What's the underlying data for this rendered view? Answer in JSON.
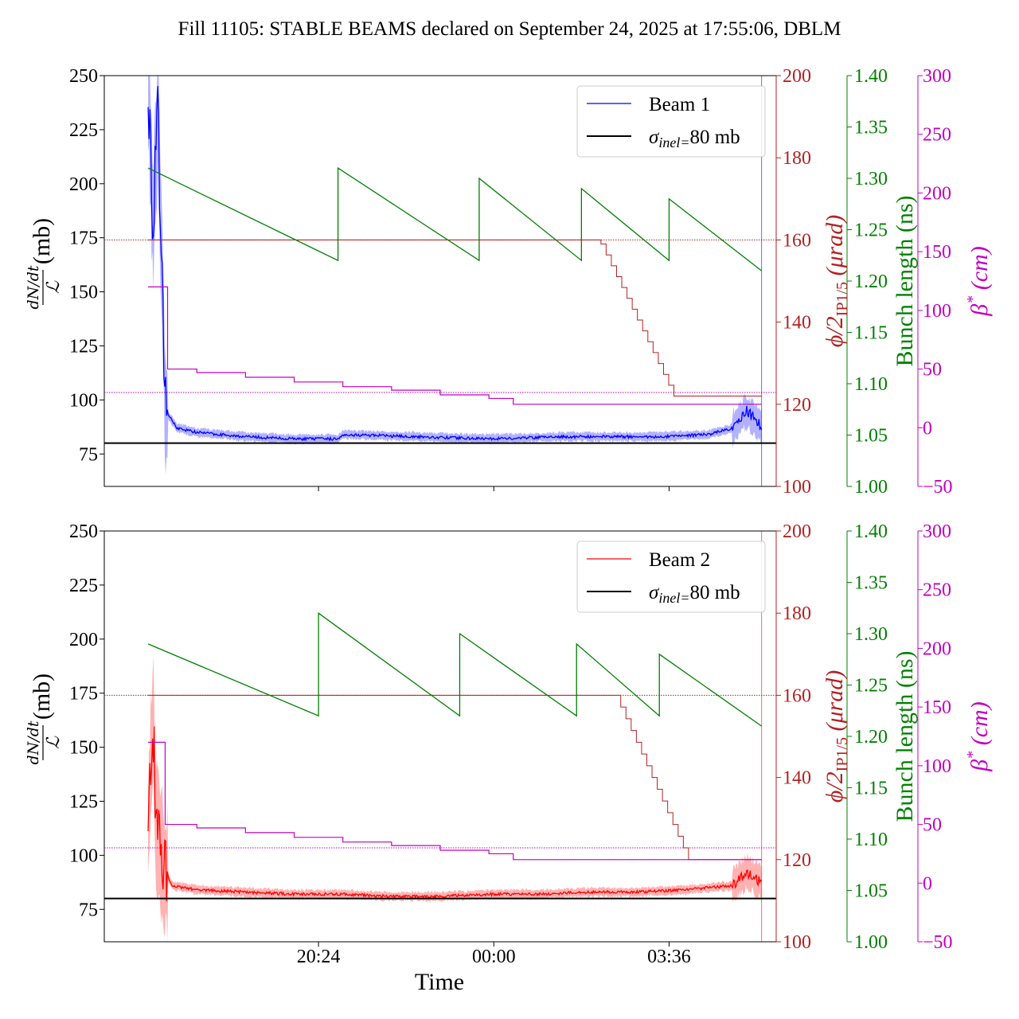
{
  "title": "Fill 11105: STABLE BEAMS declared on September 24, 2025 at 17:55:06, DBLM",
  "xlabel": "Time",
  "xticks": [
    "20:24",
    "00:00",
    "03:36"
  ],
  "colors": {
    "beam1": "#0000ff",
    "beam2": "#ff0000",
    "crossing": "#b22222",
    "bunch": "#008000",
    "betastar": "#c000c0",
    "reference": "#000000"
  },
  "axes": {
    "left": {
      "label_top": "dN/dt",
      "label_bottom": "ℒ",
      "unit": "(mb)",
      "ylim": [
        60,
        250
      ],
      "ticks": [
        75,
        100,
        125,
        150,
        175,
        200,
        225,
        250
      ]
    },
    "crossing": {
      "label": "ϕ/2",
      "label_sub": "IP1/5",
      "unit": "(μrad)",
      "ylim": [
        100,
        200
      ],
      "ticks": [
        100,
        120,
        140,
        160,
        180,
        200
      ]
    },
    "bunch": {
      "label": "Bunch length (ns)",
      "ylim": [
        1.0,
        1.4
      ],
      "ticks": [
        "1.00",
        "1.05",
        "1.10",
        "1.15",
        "1.20",
        "1.25",
        "1.30",
        "1.35",
        "1.40"
      ]
    },
    "betastar": {
      "label": "β",
      "label_sup": "*",
      "unit": "(cm)",
      "ylim": [
        -50,
        300
      ],
      "ticks": [
        "−50",
        "0",
        "50",
        "100",
        "150",
        "200",
        "250",
        "300"
      ]
    }
  },
  "chart_data": [
    {
      "panel": "top",
      "type": "line",
      "legend": [
        "Beam 1",
        "σinel=80 mb"
      ],
      "legend_position": "top-right",
      "x_unit": "hours after 17:55",
      "x_range": [
        -0.9,
        12.9
      ],
      "reference_cross_section_mb": 80,
      "crossing_reference_urad": 160,
      "betastar_reference_cm": 30,
      "beam_cross_section_mb": [
        [
          0,
          250
        ],
        [
          0.1,
          180
        ],
        [
          0.2,
          230
        ],
        [
          0.3,
          150
        ],
        [
          0.35,
          95
        ],
        [
          0.6,
          87
        ],
        [
          1.0,
          85
        ],
        [
          2.0,
          83
        ],
        [
          3.0,
          82
        ],
        [
          3.9,
          82
        ],
        [
          4.0,
          84
        ],
        [
          5.5,
          83
        ],
        [
          7.0,
          82
        ],
        [
          8.5,
          83
        ],
        [
          10.5,
          83
        ],
        [
          11.5,
          84
        ],
        [
          12.0,
          87
        ],
        [
          12.3,
          95
        ],
        [
          12.6,
          88
        ]
      ],
      "bunch_length_ns": [
        [
          0,
          1.31
        ],
        [
          3.9,
          1.22
        ],
        [
          3.9,
          1.31
        ],
        [
          6.8,
          1.22
        ],
        [
          6.8,
          1.3
        ],
        [
          8.9,
          1.22
        ],
        [
          8.9,
          1.29
        ],
        [
          10.7,
          1.22
        ],
        [
          10.7,
          1.28
        ],
        [
          12.6,
          1.21
        ]
      ],
      "crossing_angle_urad": [
        [
          0,
          160
        ],
        [
          9.3,
          160
        ],
        [
          9.3,
          159
        ],
        [
          10.8,
          122
        ],
        [
          12.6,
          122
        ]
      ],
      "betastar_cm": [
        [
          0,
          120
        ],
        [
          0.3,
          120
        ],
        [
          0.4,
          120
        ],
        [
          0.4,
          50
        ],
        [
          1.0,
          47
        ],
        [
          2.0,
          43
        ],
        [
          3.0,
          39
        ],
        [
          4.0,
          35
        ],
        [
          5.0,
          32
        ],
        [
          6.0,
          28
        ],
        [
          7.0,
          25
        ],
        [
          7.5,
          20
        ],
        [
          12.6,
          20
        ]
      ]
    },
    {
      "panel": "bottom",
      "type": "line",
      "legend": [
        "Beam 2",
        "σinel=80 mb"
      ],
      "legend_position": "top-right",
      "x_unit": "hours after 17:55",
      "x_range": [
        -0.9,
        12.9
      ],
      "reference_cross_section_mb": 80,
      "crossing_reference_urad": 160,
      "betastar_reference_cm": 30,
      "beam_cross_section_mb": [
        [
          0,
          110
        ],
        [
          0.1,
          165
        ],
        [
          0.15,
          120
        ],
        [
          0.3,
          95
        ],
        [
          0.5,
          86
        ],
        [
          1.0,
          84
        ],
        [
          2.0,
          83
        ],
        [
          3.0,
          82
        ],
        [
          4.0,
          82
        ],
        [
          5.0,
          81
        ],
        [
          6.0,
          81
        ],
        [
          7.0,
          82
        ],
        [
          8.0,
          82
        ],
        [
          9.0,
          83
        ],
        [
          10.0,
          83
        ],
        [
          11.0,
          84
        ],
        [
          12.0,
          86
        ],
        [
          12.3,
          92
        ],
        [
          12.6,
          87
        ]
      ],
      "bunch_length_ns": [
        [
          0,
          1.29
        ],
        [
          3.5,
          1.22
        ],
        [
          3.5,
          1.32
        ],
        [
          6.4,
          1.22
        ],
        [
          6.4,
          1.3
        ],
        [
          8.8,
          1.22
        ],
        [
          8.8,
          1.29
        ],
        [
          10.5,
          1.22
        ],
        [
          10.5,
          1.28
        ],
        [
          12.6,
          1.21
        ]
      ],
      "crossing_angle_urad": [
        [
          0,
          160
        ],
        [
          9.6,
          160
        ],
        [
          11.1,
          120
        ],
        [
          12.6,
          120
        ]
      ],
      "betastar_cm": [
        [
          0,
          120
        ],
        [
          0.3,
          120
        ],
        [
          0.35,
          50
        ],
        [
          1.0,
          47
        ],
        [
          2.0,
          43
        ],
        [
          3.0,
          39
        ],
        [
          4.0,
          35
        ],
        [
          5.0,
          32
        ],
        [
          6.0,
          28
        ],
        [
          7.0,
          25
        ],
        [
          7.5,
          20
        ],
        [
          12.6,
          20
        ]
      ]
    }
  ]
}
